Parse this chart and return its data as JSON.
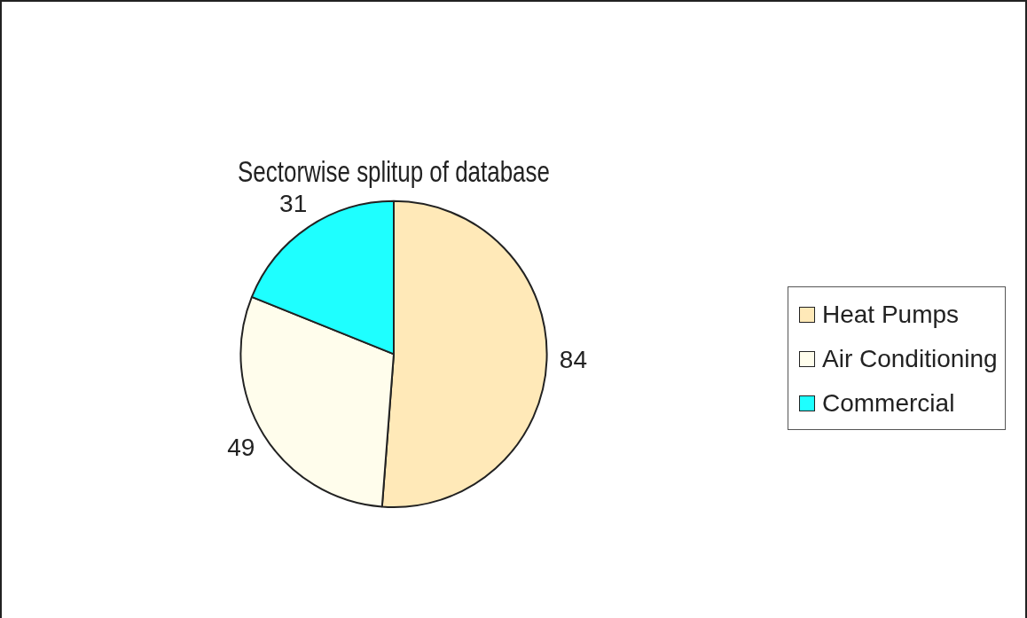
{
  "chart_data": {
    "type": "pie",
    "title": "Sectorwise splitup of database",
    "categories": [
      "Heat Pumps",
      "Air Conditioning",
      "Commercial"
    ],
    "values": [
      84,
      49,
      31
    ],
    "colors": [
      "#ffe9b8",
      "#fffdec",
      "#1effff"
    ],
    "data_labels": true,
    "legend": "right"
  }
}
